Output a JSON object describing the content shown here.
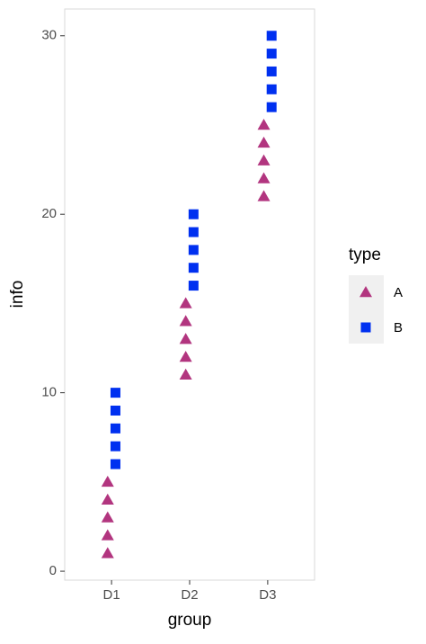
{
  "chart_data": {
    "type": "scatter",
    "categories": [
      "D1",
      "D2",
      "D3"
    ],
    "x_label": "group",
    "y_label": "info",
    "legend_title": "type",
    "series": [
      {
        "name": "A",
        "color": "#b2357f",
        "marker": "triangle",
        "x": [
          "D1",
          "D1",
          "D1",
          "D1",
          "D1",
          "D2",
          "D2",
          "D2",
          "D2",
          "D2",
          "D3",
          "D3",
          "D3",
          "D3",
          "D3"
        ],
        "values": [
          1,
          2,
          3,
          4,
          5,
          11,
          12,
          13,
          14,
          15,
          21,
          22,
          23,
          24,
          25
        ]
      },
      {
        "name": "B",
        "color": "#0030f0",
        "marker": "square",
        "x": [
          "D1",
          "D1",
          "D1",
          "D1",
          "D1",
          "D2",
          "D2",
          "D2",
          "D2",
          "D2",
          "D3",
          "D3",
          "D3",
          "D3",
          "D3"
        ],
        "values": [
          6,
          7,
          8,
          9,
          10,
          16,
          17,
          18,
          19,
          20,
          26,
          27,
          28,
          29,
          30
        ]
      }
    ],
    "ylim": [
      -0.5,
      31.5
    ],
    "yticks": [
      0,
      10,
      20,
      30
    ]
  }
}
